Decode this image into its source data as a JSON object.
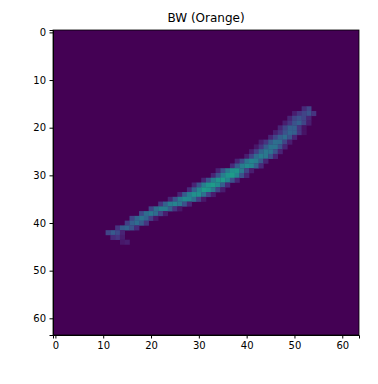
{
  "chart_data": {
    "type": "heatmap",
    "title": "BW (Orange)",
    "xlim": [
      -0.5,
      63.5
    ],
    "ylim": [
      63.5,
      -0.5
    ],
    "xticks": [
      0,
      10,
      20,
      30,
      40,
      50,
      60
    ],
    "yticks": [
      0,
      10,
      20,
      30,
      40,
      50,
      60
    ],
    "zlim": [
      0,
      1
    ],
    "rows": [
      {
        "row": 16,
        "col_start": 52,
        "values": [
          0.12,
          0.2
        ]
      },
      {
        "row": 17,
        "col_start": 50,
        "values": [
          0.08,
          0.15,
          0.2,
          0.25,
          0.15
        ]
      },
      {
        "row": 18,
        "col_start": 49,
        "values": [
          0.1,
          0.2,
          0.25,
          0.2,
          0.1
        ]
      },
      {
        "row": 19,
        "col_start": 48,
        "values": [
          0.08,
          0.15,
          0.25,
          0.3,
          0.2,
          0.08
        ]
      },
      {
        "row": 20,
        "col_start": 47,
        "values": [
          0.1,
          0.2,
          0.3,
          0.3,
          0.15,
          0.05
        ]
      },
      {
        "row": 21,
        "col_start": 46,
        "values": [
          0.08,
          0.15,
          0.25,
          0.32,
          0.3,
          0.15,
          0.05
        ]
      },
      {
        "row": 22,
        "col_start": 45,
        "values": [
          0.1,
          0.2,
          0.3,
          0.35,
          0.25,
          0.1
        ]
      },
      {
        "row": 23,
        "col_start": 43,
        "values": [
          0.08,
          0.15,
          0.28,
          0.36,
          0.35,
          0.2,
          0.08
        ]
      },
      {
        "row": 24,
        "col_start": 42,
        "values": [
          0.06,
          0.15,
          0.28,
          0.38,
          0.38,
          0.25,
          0.1
        ]
      },
      {
        "row": 25,
        "col_start": 41,
        "values": [
          0.08,
          0.18,
          0.32,
          0.4,
          0.38,
          0.25,
          0.1
        ]
      },
      {
        "row": 26,
        "col_start": 40,
        "values": [
          0.08,
          0.2,
          0.35,
          0.42,
          0.4,
          0.25,
          0.1
        ]
      },
      {
        "row": 27,
        "col_start": 38,
        "values": [
          0.1,
          0.22,
          0.38,
          0.45,
          0.42,
          0.28,
          0.1
        ]
      },
      {
        "row": 28,
        "col_start": 37,
        "values": [
          0.12,
          0.28,
          0.42,
          0.48,
          0.45,
          0.3,
          0.12
        ]
      },
      {
        "row": 29,
        "col_start": 34,
        "values": [
          0.1,
          0.25,
          0.4,
          0.5,
          0.52,
          0.4,
          0.2,
          0.08
        ]
      },
      {
        "row": 30,
        "col_start": 33,
        "values": [
          0.1,
          0.25,
          0.42,
          0.52,
          0.55,
          0.45,
          0.25,
          0.1
        ]
      },
      {
        "row": 31,
        "col_start": 31,
        "values": [
          0.1,
          0.25,
          0.42,
          0.52,
          0.55,
          0.45,
          0.25,
          0.1
        ]
      },
      {
        "row": 32,
        "col_start": 29,
        "values": [
          0.1,
          0.25,
          0.42,
          0.52,
          0.55,
          0.48,
          0.3,
          0.12
        ]
      },
      {
        "row": 33,
        "col_start": 28,
        "values": [
          0.12,
          0.3,
          0.45,
          0.55,
          0.52,
          0.4,
          0.2,
          0.08
        ]
      },
      {
        "row": 34,
        "col_start": 26,
        "values": [
          0.1,
          0.28,
          0.42,
          0.5,
          0.5,
          0.38,
          0.2,
          0.08
        ]
      },
      {
        "row": 35,
        "col_start": 24,
        "values": [
          0.1,
          0.25,
          0.4,
          0.48,
          0.46,
          0.35,
          0.18,
          0.06
        ]
      },
      {
        "row": 36,
        "col_start": 22,
        "values": [
          0.15,
          0.3,
          0.42,
          0.45,
          0.4,
          0.25,
          0.1
        ]
      },
      {
        "row": 37,
        "col_start": 20,
        "values": [
          0.2,
          0.35,
          0.42,
          0.42,
          0.3,
          0.15,
          0.06
        ]
      },
      {
        "row": 38,
        "col_start": 18,
        "values": [
          0.22,
          0.35,
          0.4,
          0.35,
          0.2,
          0.08
        ]
      },
      {
        "row": 39,
        "col_start": 16,
        "values": [
          0.2,
          0.32,
          0.38,
          0.32,
          0.18,
          0.06
        ]
      },
      {
        "row": 40,
        "col_start": 15,
        "values": [
          0.18,
          0.3,
          0.35,
          0.28,
          0.15
        ]
      },
      {
        "row": 41,
        "col_start": 13,
        "values": [
          0.15,
          0.28,
          0.32,
          0.25,
          0.12
        ]
      },
      {
        "row": 42,
        "col_start": 11,
        "values": [
          0.2,
          0.28,
          0.22,
          0.1
        ]
      },
      {
        "row": 43,
        "col_start": 12,
        "values": [
          0.12,
          0.15,
          0.08
        ]
      },
      {
        "row": 44,
        "col_start": 14,
        "values": [
          0.06,
          0.08
        ]
      }
    ]
  }
}
